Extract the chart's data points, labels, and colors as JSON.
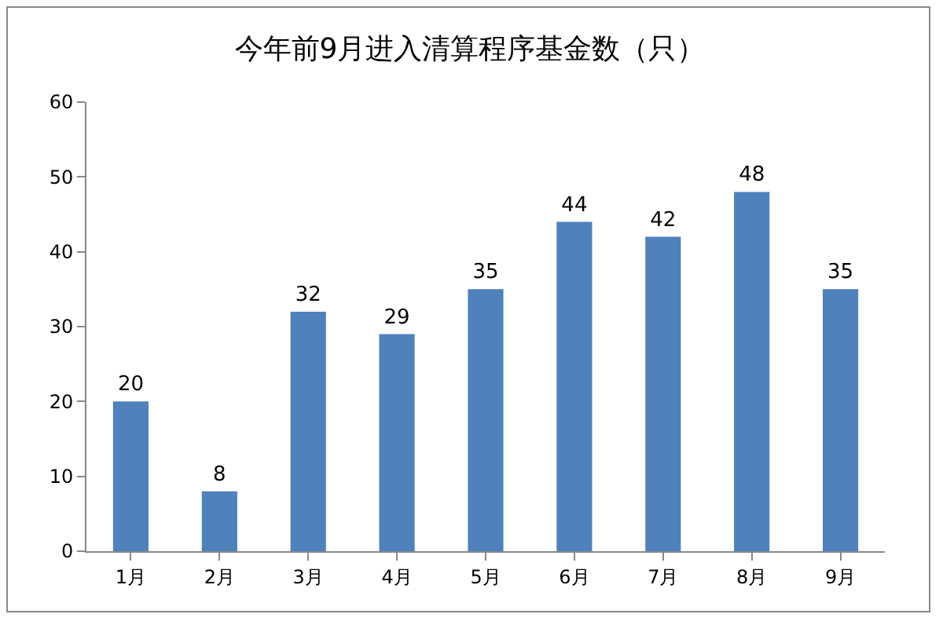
{
  "chart_data": {
    "type": "bar",
    "title": "今年前9月进入清算程序基金数（只）",
    "categories": [
      "1月",
      "2月",
      "3月",
      "4月",
      "5月",
      "6月",
      "7月",
      "8月",
      "9月"
    ],
    "values": [
      20,
      8,
      32,
      29,
      35,
      44,
      42,
      48,
      35
    ],
    "color": "#4f81bd",
    "ylim": [
      0,
      60
    ],
    "yticks": [
      0,
      10,
      20,
      30,
      40,
      50,
      60
    ],
    "data_labels": true
  }
}
